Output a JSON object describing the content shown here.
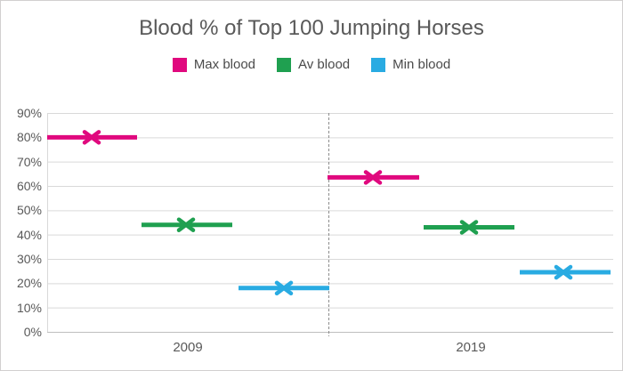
{
  "chart_data": {
    "type": "line",
    "title": "Blood % of Top 100 Jumping Horses",
    "categories": [
      "2009",
      "2019"
    ],
    "series": [
      {
        "name": "Max blood",
        "color": "#e0097e",
        "values": [
          80,
          63.5
        ]
      },
      {
        "name": "Av blood",
        "color": "#1fa050",
        "values": [
          44,
          43
        ]
      },
      {
        "name": "Min blood",
        "color": "#29abe2",
        "values": [
          18,
          24.5
        ]
      }
    ],
    "y_axis": {
      "min": 0,
      "max": 90,
      "step": 10,
      "tick_labels": [
        "0%",
        "10%",
        "20%",
        "30%",
        "40%",
        "50%",
        "60%",
        "70%",
        "80%",
        "90%"
      ]
    },
    "x_axis": {
      "category_labels": [
        "2009",
        "2019"
      ]
    },
    "legend_position": "top",
    "marker": "x",
    "grid": "horizontal",
    "annotations": {
      "category_divider": "dashed vertical line between 2009 and 2019"
    },
    "colors": {
      "title_text": "#595959",
      "legend_text": "#4a4a4a",
      "axis_text": "#595959",
      "gridline": "#d9d9d9",
      "axis_line": "#bfbfbf",
      "divider": "#8c8c8c",
      "border": "#d2cfcf",
      "background": "#ffffff"
    }
  }
}
